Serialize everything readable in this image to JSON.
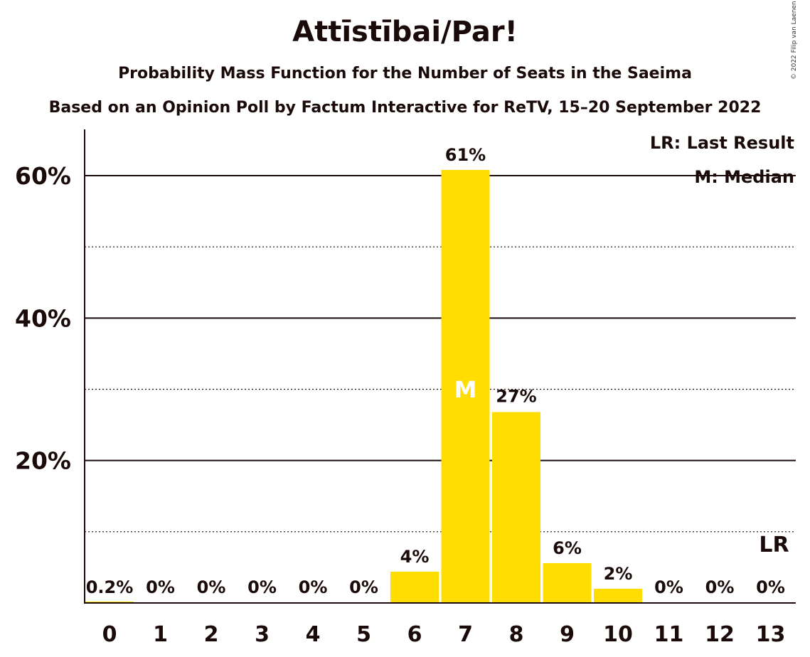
{
  "chart_data": {
    "type": "bar",
    "title": "Attīstībai/Par!",
    "subtitle": "Probability Mass Function for the Number of Seats in the Saeima",
    "subtitle2": "Based on an Opinion Poll by Factum Interactive for ReTV, 15–20 September 2022",
    "copyright": "© 2022 Filip van Laenen",
    "categories": [
      "0",
      "1",
      "2",
      "3",
      "4",
      "5",
      "6",
      "7",
      "8",
      "9",
      "10",
      "11",
      "12",
      "13"
    ],
    "values": [
      0.2,
      0,
      0,
      0,
      0,
      0,
      4.4,
      60.8,
      26.8,
      5.6,
      2.0,
      0,
      0,
      0
    ],
    "data_labels": [
      "0.2%",
      "0%",
      "0%",
      "0%",
      "0%",
      "0%",
      "4%",
      "61%",
      "27%",
      "6%",
      "2%",
      "0%",
      "0%",
      "0%"
    ],
    "ylim": [
      0,
      66
    ],
    "yticks_major": [
      20,
      40,
      60
    ],
    "ytick_labels": [
      "20%",
      "40%",
      "60%"
    ],
    "yticks_minor": [
      10,
      30,
      50
    ],
    "median": {
      "category": "7",
      "label": "M"
    },
    "last_result": {
      "category": "13",
      "label": "LR"
    },
    "legend": [
      "LR: Last Result",
      "M: Median"
    ],
    "legend_position": "top-right",
    "bar_color": "#FFDD00",
    "text_color": "#1a0a0a"
  }
}
